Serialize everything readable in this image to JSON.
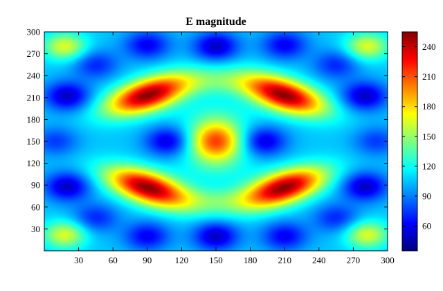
{
  "chart_data": {
    "type": "heatmap",
    "title": "E magnitude",
    "xlabel": "",
    "ylabel": "",
    "xlim": [
      0,
      300
    ],
    "ylim": [
      0,
      300
    ],
    "xticks": [
      30,
      60,
      90,
      120,
      150,
      180,
      210,
      240,
      270,
      300
    ],
    "yticks": [
      30,
      60,
      90,
      120,
      150,
      180,
      210,
      240,
      270,
      300
    ],
    "colorbar": {
      "min": 35,
      "max": 255,
      "ticks": [
        60,
        90,
        120,
        150,
        180,
        210,
        240
      ],
      "colormap": "jet"
    },
    "peaks": [
      {
        "x": 90,
        "y": 87,
        "value": 250
      },
      {
        "x": 210,
        "y": 87,
        "value": 250
      },
      {
        "x": 90,
        "y": 213,
        "value": 250
      },
      {
        "x": 210,
        "y": 213,
        "value": 250
      },
      {
        "x": 150,
        "y": 150,
        "value": 215
      },
      {
        "x": 18,
        "y": 22,
        "value": 165
      },
      {
        "x": 282,
        "y": 22,
        "value": 165
      },
      {
        "x": 18,
        "y": 280,
        "value": 165
      },
      {
        "x": 282,
        "y": 280,
        "value": 165
      }
    ],
    "grid": false
  }
}
